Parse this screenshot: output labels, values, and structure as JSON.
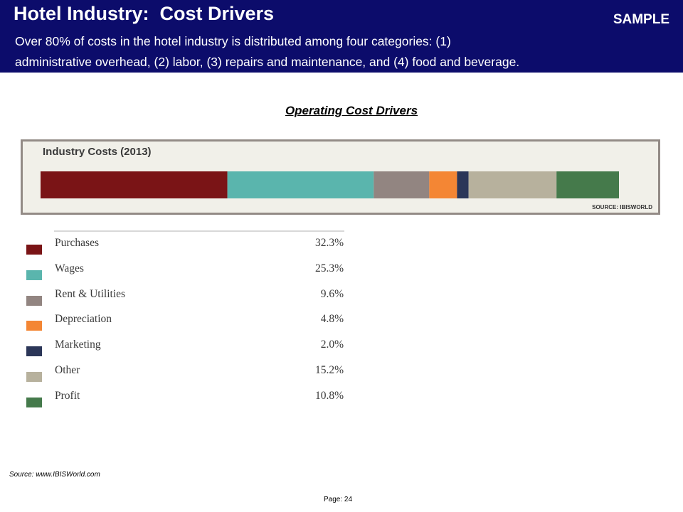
{
  "header": {
    "title": "Hotel Industry:  Cost Drivers",
    "sample_label": "SAMPLE",
    "subtitle": "Over 80% of costs in the  hotel industry is distributed among four categories:  (1)\nadministrative overhead, (2) labor, (3) repairs and maintenance, and (4) food and beverage."
  },
  "section_heading": "Operating Cost Drivers",
  "chart_data": {
    "type": "bar",
    "stacked": true,
    "orientation": "horizontal",
    "title": "Industry Costs (2013)",
    "source": "SOURCE: IBISWORLD",
    "categories": [
      "Purchases",
      "Wages",
      "Rent & Utilities",
      "Depreciation",
      "Marketing",
      "Other",
      "Profit"
    ],
    "values": [
      32.3,
      25.3,
      9.6,
      4.8,
      2.0,
      15.2,
      10.8
    ],
    "value_labels": [
      "32.3%",
      "25.3%",
      "9.6%",
      "4.8%",
      "2.0%",
      "15.2%",
      "10.8%"
    ],
    "colors": [
      "#7a1416",
      "#5ab5ad",
      "#928581",
      "#f48634",
      "#2b3658",
      "#b7b19d",
      "#457a4b"
    ],
    "unit": "%"
  },
  "footer": {
    "source": "Source: www.IBISWorld.com",
    "page": "Page: 24"
  }
}
